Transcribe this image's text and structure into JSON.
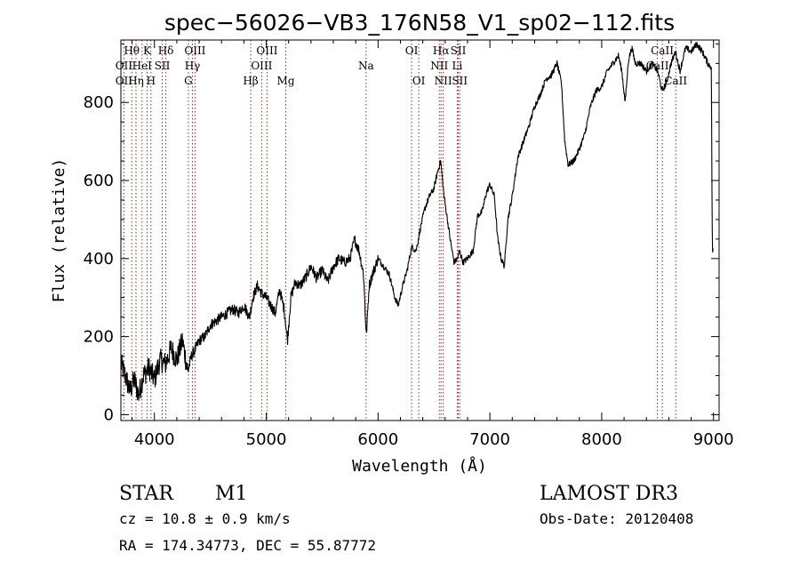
{
  "chart_data": {
    "type": "line",
    "title": "spec−56026−VB3_176N58_V1_sp02−112.fits",
    "xlabel": "Wavelength (Å)",
    "ylabel": "Flux (relative)",
    "xlim": [
      3700,
      9050
    ],
    "ylim": [
      -15,
      960
    ],
    "xticks": [
      4000,
      5000,
      6000,
      7000,
      8000,
      9000
    ],
    "yticks": [
      0,
      200,
      400,
      600,
      800
    ],
    "series": [
      {
        "name": "flux",
        "x": [
          3700,
          3740,
          3780,
          3820,
          3860,
          3900,
          3950,
          4000,
          4050,
          4100,
          4150,
          4200,
          4250,
          4300,
          4330,
          4370,
          4400,
          4450,
          4500,
          4550,
          4600,
          4650,
          4700,
          4750,
          4800,
          4850,
          4880,
          4920,
          4960,
          5000,
          5040,
          5080,
          5120,
          5160,
          5190,
          5220,
          5260,
          5300,
          5350,
          5400,
          5450,
          5500,
          5550,
          5600,
          5650,
          5700,
          5750,
          5790,
          5830,
          5870,
          5895,
          5920,
          5950,
          6000,
          6050,
          6100,
          6150,
          6180,
          6220,
          6260,
          6300,
          6340,
          6380,
          6420,
          6460,
          6500,
          6530,
          6560,
          6590,
          6620,
          6650,
          6680,
          6710,
          6730,
          6760,
          6800,
          6850,
          6890,
          6930,
          6970,
          7000,
          7040,
          7070,
          7100,
          7130,
          7160,
          7200,
          7250,
          7300,
          7350,
          7400,
          7450,
          7500,
          7550,
          7600,
          7640,
          7670,
          7700,
          7750,
          7800,
          7850,
          7900,
          7950,
          8000,
          8050,
          8100,
          8150,
          8180,
          8210,
          8240,
          8270,
          8300,
          8350,
          8400,
          8450,
          8500,
          8540,
          8580,
          8620,
          8660,
          8700,
          8750,
          8800,
          8850,
          8900,
          8950,
          8980,
          8990,
          9000
        ],
        "y": [
          130,
          100,
          60,
          90,
          50,
          100,
          120,
          90,
          140,
          130,
          170,
          140,
          190,
          110,
          150,
          170,
          190,
          200,
          230,
          240,
          250,
          260,
          270,
          260,
          280,
          250,
          300,
          330,
          310,
          300,
          280,
          260,
          320,
          270,
          190,
          300,
          340,
          330,
          350,
          380,
          350,
          370,
          340,
          380,
          400,
          390,
          400,
          450,
          420,
          360,
          200,
          330,
          360,
          400,
          380,
          360,
          300,
          280,
          330,
          370,
          430,
          420,
          480,
          530,
          560,
          580,
          620,
          650,
          560,
          500,
          440,
          390,
          400,
          420,
          390,
          400,
          420,
          510,
          520,
          570,
          590,
          560,
          450,
          400,
          380,
          500,
          560,
          660,
          700,
          740,
          790,
          820,
          860,
          870,
          900,
          850,
          700,
          640,
          650,
          680,
          720,
          790,
          830,
          840,
          880,
          900,
          920,
          880,
          800,
          910,
          940,
          900,
          900,
          880,
          900,
          880,
          830,
          850,
          900,
          930,
          880,
          940,
          930,
          950,
          930,
          900,
          890,
          420,
          420
        ]
      }
    ],
    "line_markers": [
      {
        "label": "Hθ",
        "wave": 3797,
        "row": 0
      },
      {
        "label": "K",
        "wave": 3934,
        "row": 0
      },
      {
        "label": "Hδ",
        "wave": 4102,
        "row": 0
      },
      {
        "label": "OIII",
        "wave": 4363,
        "row": 0
      },
      {
        "label": "OIII",
        "wave": 5007,
        "row": 0
      },
      {
        "label": "OI",
        "wave": 6300,
        "row": 0
      },
      {
        "label": "Hα",
        "wave": 6563,
        "row": 0
      },
      {
        "label": "SII",
        "wave": 6717,
        "row": 0
      },
      {
        "label": "CaII",
        "wave": 8542,
        "row": 0
      },
      {
        "label": "OII",
        "wave": 3727,
        "row": 1
      },
      {
        "label": "HeI",
        "wave": 3889,
        "row": 1
      },
      {
        "label": "SII",
        "wave": 4070,
        "row": 1
      },
      {
        "label": "Hγ",
        "wave": 4340,
        "row": 1
      },
      {
        "label": "OIII",
        "wave": 4959,
        "row": 1
      },
      {
        "label": "Na",
        "wave": 5893,
        "row": 1
      },
      {
        "label": "NII",
        "wave": 6548,
        "row": 1
      },
      {
        "label": "Li",
        "wave": 6708,
        "row": 1
      },
      {
        "label": "CaII",
        "wave": 8498,
        "row": 1
      },
      {
        "label": "OII",
        "wave": 3727,
        "row": 2
      },
      {
        "label": "Hη",
        "wave": 3835,
        "row": 2
      },
      {
        "label": "H",
        "wave": 3969,
        "row": 2
      },
      {
        "label": "G",
        "wave": 4304,
        "row": 2
      },
      {
        "label": "Hβ",
        "wave": 4861,
        "row": 2
      },
      {
        "label": "Mg",
        "wave": 5175,
        "row": 2
      },
      {
        "label": "OI",
        "wave": 6364,
        "row": 2
      },
      {
        "label": "NII",
        "wave": 6583,
        "row": 2
      },
      {
        "label": "SII",
        "wave": 6731,
        "row": 2
      },
      {
        "label": "CaII",
        "wave": 8662,
        "row": 2
      }
    ],
    "marker_color": "#b22222"
  },
  "info": {
    "class": "STAR",
    "subclass": "M1",
    "survey": "LAMOST DR3",
    "cz": "cz = 10.8 ± 0.9 km/s",
    "obs_date": "Obs-Date: 20120408",
    "coords": "RA = 174.34773, DEC =  55.87772"
  }
}
